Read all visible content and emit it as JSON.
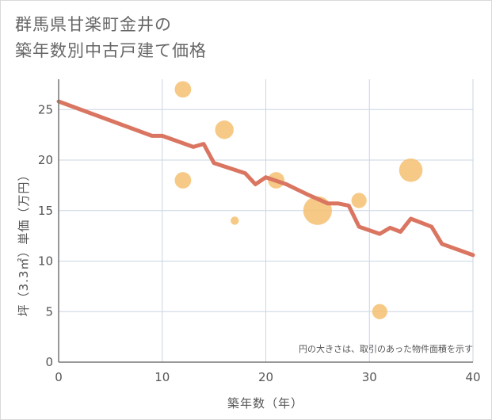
{
  "title": {
    "line1": "群馬県甘楽町金井の",
    "line2": "築年数別中古戸建て価格"
  },
  "colors": {
    "line": "#d97560",
    "bubble": "#f5c171",
    "grid": "#c9d6e3",
    "axis": "#777777"
  },
  "chart_data": {
    "type": "scatter",
    "xlabel": "築年数（年）",
    "ylabel": "坪（3.3㎡）単価（万円）",
    "xlim": [
      0,
      40
    ],
    "ylim": [
      0,
      28
    ],
    "xticks": [
      0,
      10,
      20,
      30,
      40
    ],
    "yticks": [
      0,
      5,
      10,
      15,
      20,
      25
    ],
    "grid": true,
    "note": "円の大きさは、取引のあった物件面積を示す",
    "points": [
      {
        "x": 12,
        "y": 27,
        "size": 2
      },
      {
        "x": 12,
        "y": 18,
        "size": 2
      },
      {
        "x": 16,
        "y": 23,
        "size": 2.5
      },
      {
        "x": 17,
        "y": 14,
        "size": 0.5
      },
      {
        "x": 21,
        "y": 18,
        "size": 2
      },
      {
        "x": 25,
        "y": 15,
        "size": 6
      },
      {
        "x": 29,
        "y": 16,
        "size": 1.7
      },
      {
        "x": 31,
        "y": 5,
        "size": 1.7
      },
      {
        "x": 34,
        "y": 19,
        "size": 4
      }
    ],
    "line": [
      {
        "x": 0,
        "y": 25.8
      },
      {
        "x": 9,
        "y": 22.4
      },
      {
        "x": 10,
        "y": 22.4
      },
      {
        "x": 13,
        "y": 21.3
      },
      {
        "x": 14,
        "y": 21.6
      },
      {
        "x": 15,
        "y": 19.7
      },
      {
        "x": 18,
        "y": 18.7
      },
      {
        "x": 19,
        "y": 17.6
      },
      {
        "x": 20,
        "y": 18.3
      },
      {
        "x": 22,
        "y": 17.6
      },
      {
        "x": 24,
        "y": 16.6
      },
      {
        "x": 26,
        "y": 15.7
      },
      {
        "x": 27,
        "y": 15.7
      },
      {
        "x": 28,
        "y": 15.5
      },
      {
        "x": 29,
        "y": 13.4
      },
      {
        "x": 31,
        "y": 12.7
      },
      {
        "x": 32,
        "y": 13.3
      },
      {
        "x": 33,
        "y": 12.9
      },
      {
        "x": 34,
        "y": 14.2
      },
      {
        "x": 36,
        "y": 13.4
      },
      {
        "x": 37,
        "y": 11.7
      },
      {
        "x": 40,
        "y": 10.6
      }
    ]
  }
}
